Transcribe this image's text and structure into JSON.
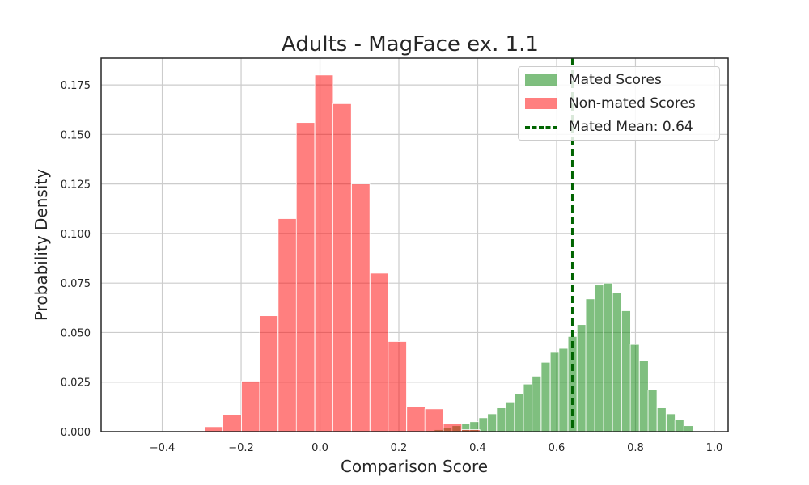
{
  "chart_data": {
    "type": "bar",
    "title": "Adults - MagFace ex. 1.1",
    "xlabel": "Comparison Score",
    "ylabel": "Probability Density",
    "xlim": [
      -0.555,
      1.035
    ],
    "ylim": [
      0,
      0.1885
    ],
    "grid": true,
    "legend_position": "top-right",
    "xticks": [
      -0.4,
      -0.2,
      0.0,
      0.2,
      0.4,
      0.6,
      0.8,
      1.0
    ],
    "xtick_labels": [
      "−0.4",
      "−0.2",
      "0.0",
      "0.2",
      "0.4",
      "0.6",
      "0.8",
      "1.0"
    ],
    "yticks": [
      0,
      0.025,
      0.05,
      0.075,
      0.1,
      0.125,
      0.15,
      0.175
    ],
    "ytick_labels": [
      "0.000",
      "0.025",
      "0.050",
      "0.075",
      "0.100",
      "0.125",
      "0.150",
      "0.175"
    ],
    "series": [
      {
        "name": "Mated Scores",
        "color": "#008000",
        "alpha": 0.5,
        "bin_width": 0.0226,
        "bin_starts": [
          0.267,
          0.29,
          0.312,
          0.335,
          0.358,
          0.38,
          0.403,
          0.425,
          0.448,
          0.471,
          0.493,
          0.516,
          0.538,
          0.561,
          0.584,
          0.606,
          0.629,
          0.652,
          0.674,
          0.697,
          0.719,
          0.742,
          0.765,
          0.787,
          0.81,
          0.832,
          0.855,
          0.878,
          0.9,
          0.923
        ],
        "values": [
          0.0005,
          0.001,
          0.002,
          0.003,
          0.004,
          0.005,
          0.007,
          0.009,
          0.012,
          0.015,
          0.019,
          0.024,
          0.028,
          0.035,
          0.04,
          0.042,
          0.048,
          0.054,
          0.067,
          0.074,
          0.075,
          0.07,
          0.061,
          0.044,
          0.036,
          0.021,
          0.012,
          0.009,
          0.006,
          0.003
        ]
      },
      {
        "name": "Non-mated Scores",
        "color": "#ff0000",
        "alpha": 0.5,
        "bin_width": 0.0465,
        "bin_starts": [
          -0.339,
          -0.292,
          -0.246,
          -0.199,
          -0.153,
          -0.106,
          -0.06,
          -0.013,
          0.033,
          0.08,
          0.127,
          0.173,
          0.22,
          0.266,
          0.313,
          0.359
        ],
        "values": [
          0.0004,
          0.0025,
          0.0085,
          0.0255,
          0.0585,
          0.1075,
          0.156,
          0.18,
          0.1655,
          0.125,
          0.08,
          0.0455,
          0.0125,
          0.0115,
          0.004,
          0.001
        ]
      }
    ],
    "mean_line": {
      "name": "Mated Mean: 0.64",
      "x": 0.64,
      "color": "#006400",
      "style": "dashed"
    }
  },
  "legend": {
    "mated_label": "Mated Scores",
    "nonmated_label": "Non-mated Scores",
    "mean_label": "Mated Mean: 0.64"
  }
}
